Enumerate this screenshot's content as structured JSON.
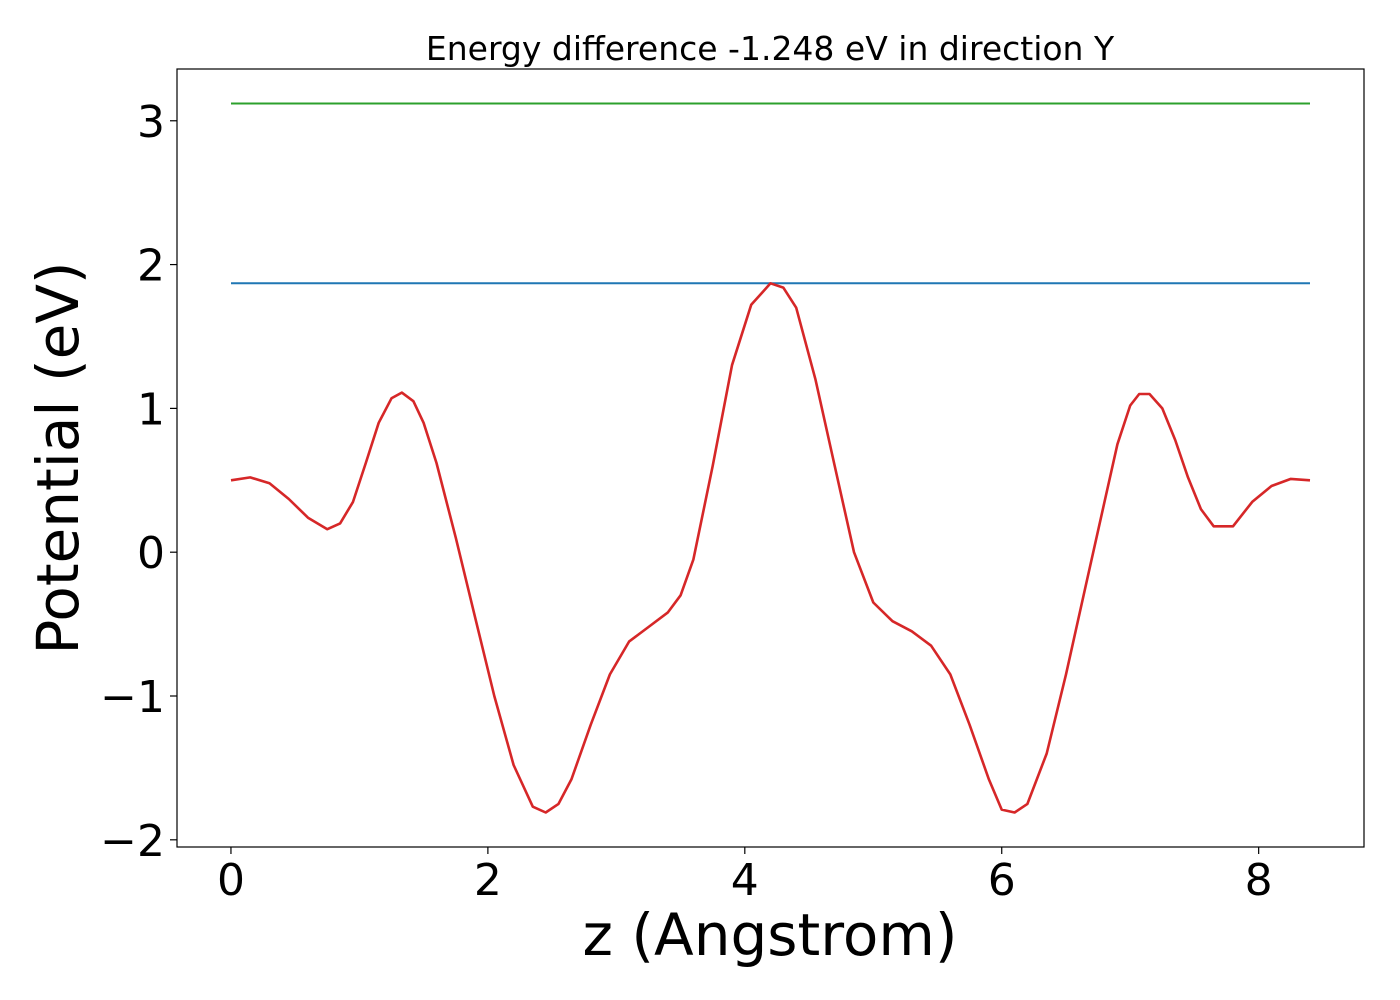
{
  "chart_data": {
    "type": "line",
    "title": "Energy difference -1.248 eV in direction Y",
    "xlabel": "z (Angstrom)",
    "ylabel": "Potential (eV)",
    "xlim": [
      -0.42,
      8.82
    ],
    "ylim": [
      -2.05,
      3.36
    ],
    "xticks": [
      0,
      2,
      4,
      6,
      8
    ],
    "xtick_labels": [
      "0",
      "2",
      "4",
      "6",
      "8"
    ],
    "yticks": [
      -2,
      -1,
      0,
      1,
      2,
      3
    ],
    "ytick_labels": [
      "−2",
      "−1",
      "0",
      "1",
      "2",
      "3"
    ],
    "grid": false,
    "legend": "none",
    "series": [
      {
        "color": "#2ca02c",
        "x": [
          0,
          8.4
        ],
        "y": [
          3.12,
          3.12
        ]
      },
      {
        "color": "#1f77b4",
        "x": [
          0,
          8.4
        ],
        "y": [
          1.87,
          1.87
        ]
      },
      {
        "color": "#d62728",
        "x": [
          0,
          0.15,
          0.3,
          0.45,
          0.6,
          0.75,
          0.85,
          0.95,
          1.05,
          1.15,
          1.25,
          1.33,
          1.42,
          1.5,
          1.6,
          1.75,
          1.9,
          2.05,
          2.2,
          2.35,
          2.45,
          2.55,
          2.65,
          2.8,
          2.95,
          3.1,
          3.25,
          3.4,
          3.5,
          3.6,
          3.75,
          3.9,
          4.05,
          4.2,
          4.3,
          4.4,
          4.55,
          4.7,
          4.85,
          5.0,
          5.15,
          5.3,
          5.45,
          5.6,
          5.75,
          5.9,
          6.0,
          6.1,
          6.2,
          6.35,
          6.5,
          6.65,
          6.8,
          6.9,
          7.0,
          7.07,
          7.15,
          7.25,
          7.35,
          7.45,
          7.55,
          7.65,
          7.8,
          7.95,
          8.1,
          8.25,
          8.4
        ],
        "y": [
          0.5,
          0.52,
          0.48,
          0.37,
          0.24,
          0.16,
          0.2,
          0.35,
          0.62,
          0.9,
          1.07,
          1.11,
          1.05,
          0.9,
          0.62,
          0.1,
          -0.45,
          -1.0,
          -1.48,
          -1.77,
          -1.81,
          -1.75,
          -1.58,
          -1.2,
          -0.85,
          -0.62,
          -0.52,
          -0.42,
          -0.3,
          -0.05,
          0.6,
          1.3,
          1.72,
          1.87,
          1.84,
          1.7,
          1.2,
          0.6,
          0.0,
          -0.35,
          -0.48,
          -0.55,
          -0.65,
          -0.85,
          -1.2,
          -1.58,
          -1.79,
          -1.81,
          -1.75,
          -1.4,
          -0.85,
          -0.25,
          0.35,
          0.75,
          1.02,
          1.1,
          1.1,
          1.0,
          0.78,
          0.52,
          0.3,
          0.18,
          0.18,
          0.35,
          0.46,
          0.51,
          0.5
        ]
      }
    ]
  }
}
